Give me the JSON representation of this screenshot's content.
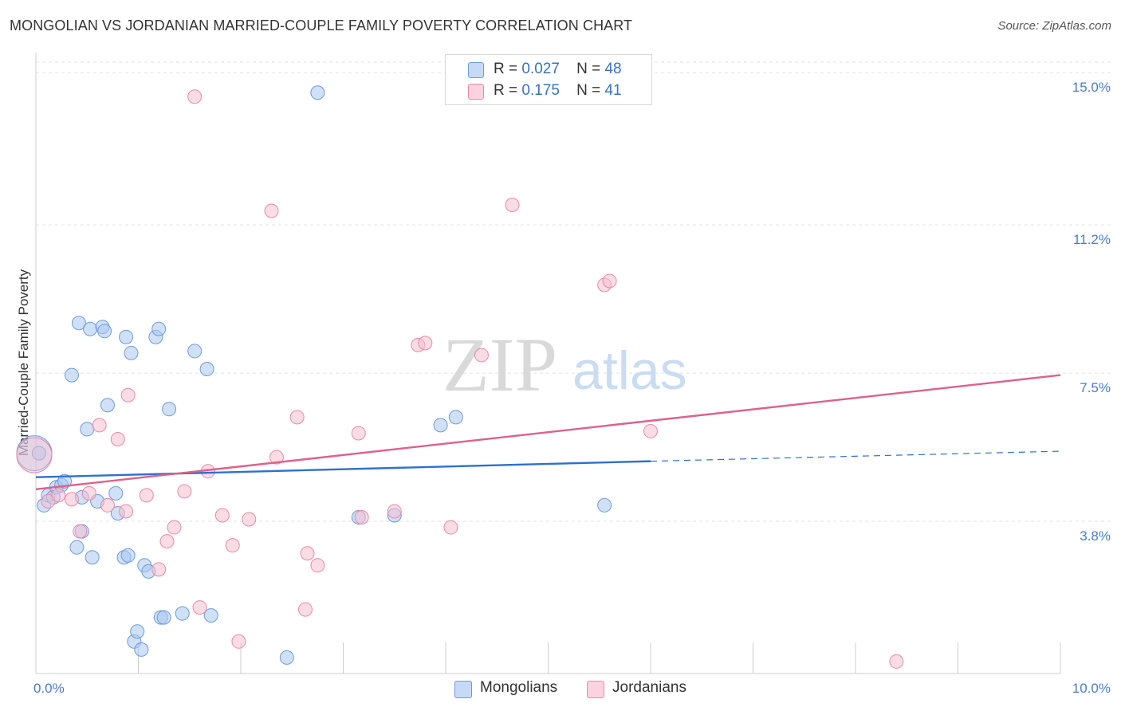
{
  "title": "MONGOLIAN VS JORDANIAN MARRIED-COUPLE FAMILY POVERTY CORRELATION CHART",
  "source": "Source: ZipAtlas.com",
  "watermark": {
    "zip": "ZIP",
    "atlas": "atlas"
  },
  "legend_top": {
    "rows": [
      {
        "r_label": "R =",
        "r_value": "0.027",
        "n_label": "N =",
        "n_value": "48",
        "color": "#a9c8f0"
      },
      {
        "r_label": "R =",
        "r_value": "0.175",
        "n_label": "N =",
        "n_value": "41",
        "color": "#f6bfd0"
      }
    ]
  },
  "legend_bottom": {
    "items": [
      {
        "label": "Mongolians",
        "color": "#a9c8f0"
      },
      {
        "label": "Jordanians",
        "color": "#f6bfd0"
      }
    ]
  },
  "chart_data": {
    "type": "scatter",
    "title": "MONGOLIAN VS JORDANIAN MARRIED-COUPLE FAMILY POVERTY CORRELATION CHART",
    "xlabel": "",
    "ylabel": "Married-Couple Family Poverty",
    "xlim": [
      0,
      10
    ],
    "ylim": [
      0,
      15.5
    ],
    "x_tick_labels": [
      {
        "value": 0,
        "label": "0.0%"
      },
      {
        "value": 10,
        "label": "10.0%"
      }
    ],
    "y_ticks": [
      {
        "value": 3.8,
        "label": "3.8%"
      },
      {
        "value": 7.5,
        "label": "7.5%"
      },
      {
        "value": 11.2,
        "label": "11.2%"
      },
      {
        "value": 15.0,
        "label": "15.0%"
      }
    ],
    "grid": true,
    "series": [
      {
        "name": "Mongolians",
        "color": "#a9c8f0",
        "stroke": "#6d9bd9",
        "line_color": "#2f6fd0",
        "trend": {
          "x0": 0,
          "y0": 4.9,
          "x1": 6,
          "y1": 5.3,
          "dash_to_x": 10,
          "dash_to_y": 5.55
        },
        "points": [
          [
            0.03,
            5.5
          ],
          [
            0.08,
            4.2
          ],
          [
            0.12,
            4.45
          ],
          [
            0.17,
            4.4
          ],
          [
            0.2,
            4.65
          ],
          [
            0.25,
            4.7
          ],
          [
            0.28,
            4.8
          ],
          [
            0.35,
            7.45
          ],
          [
            0.42,
            8.75
          ],
          [
            0.45,
            4.4
          ],
          [
            0.45,
            3.55
          ],
          [
            0.4,
            3.15
          ],
          [
            0.5,
            6.1
          ],
          [
            0.53,
            8.6
          ],
          [
            0.55,
            2.9
          ],
          [
            0.6,
            4.3
          ],
          [
            0.65,
            8.65
          ],
          [
            0.67,
            8.55
          ],
          [
            0.7,
            6.7
          ],
          [
            0.78,
            4.5
          ],
          [
            0.8,
            4.0
          ],
          [
            0.86,
            2.9
          ],
          [
            0.88,
            8.4
          ],
          [
            0.9,
            2.95
          ],
          [
            0.93,
            8.0
          ],
          [
            0.96,
            0.8
          ],
          [
            0.99,
            1.05
          ],
          [
            1.03,
            0.6
          ],
          [
            1.06,
            2.7
          ],
          [
            1.1,
            2.55
          ],
          [
            1.17,
            8.4
          ],
          [
            1.2,
            8.6
          ],
          [
            1.22,
            1.4
          ],
          [
            1.25,
            1.4
          ],
          [
            1.3,
            6.6
          ],
          [
            1.43,
            1.5
          ],
          [
            1.55,
            8.05
          ],
          [
            1.67,
            7.6
          ],
          [
            1.71,
            1.45
          ],
          [
            2.45,
            0.4
          ],
          [
            2.75,
            14.5
          ],
          [
            3.15,
            3.9
          ],
          [
            3.5,
            3.95
          ],
          [
            3.95,
            6.2
          ],
          [
            4.1,
            6.4
          ],
          [
            5.55,
            4.2
          ]
        ],
        "big_points": [
          [
            0.0,
            5.5
          ]
        ]
      },
      {
        "name": "Jordanians",
        "color": "#f6bfd0",
        "stroke": "#e88aa8",
        "line_color": "#e0608a",
        "trend": {
          "x0": 0,
          "y0": 4.6,
          "x1": 10,
          "y1": 7.45
        },
        "points": [
          [
            0.12,
            4.3
          ],
          [
            0.22,
            4.45
          ],
          [
            0.35,
            4.35
          ],
          [
            0.43,
            3.55
          ],
          [
            0.52,
            4.5
          ],
          [
            0.62,
            6.2
          ],
          [
            0.7,
            4.2
          ],
          [
            0.8,
            5.85
          ],
          [
            0.88,
            4.05
          ],
          [
            0.9,
            6.95
          ],
          [
            1.08,
            4.45
          ],
          [
            1.2,
            2.6
          ],
          [
            1.28,
            3.3
          ],
          [
            1.35,
            3.65
          ],
          [
            1.45,
            4.55
          ],
          [
            1.6,
            1.65
          ],
          [
            1.68,
            5.05
          ],
          [
            1.82,
            3.95
          ],
          [
            1.92,
            3.2
          ],
          [
            1.98,
            0.8
          ],
          [
            2.08,
            3.85
          ],
          [
            2.3,
            11.55
          ],
          [
            2.35,
            5.4
          ],
          [
            2.55,
            6.4
          ],
          [
            2.63,
            1.6
          ],
          [
            2.65,
            3.0
          ],
          [
            2.75,
            2.7
          ],
          [
            1.55,
            14.4
          ],
          [
            3.15,
            6.0
          ],
          [
            3.18,
            3.9
          ],
          [
            3.5,
            4.05
          ],
          [
            3.73,
            8.2
          ],
          [
            3.8,
            8.25
          ],
          [
            4.05,
            3.65
          ],
          [
            4.35,
            7.95
          ],
          [
            4.65,
            11.7
          ],
          [
            5.55,
            9.7
          ],
          [
            5.6,
            9.8
          ],
          [
            6.0,
            6.05
          ],
          [
            8.4,
            0.3
          ]
        ],
        "big_points": [
          [
            0.0,
            5.45
          ]
        ]
      }
    ]
  }
}
